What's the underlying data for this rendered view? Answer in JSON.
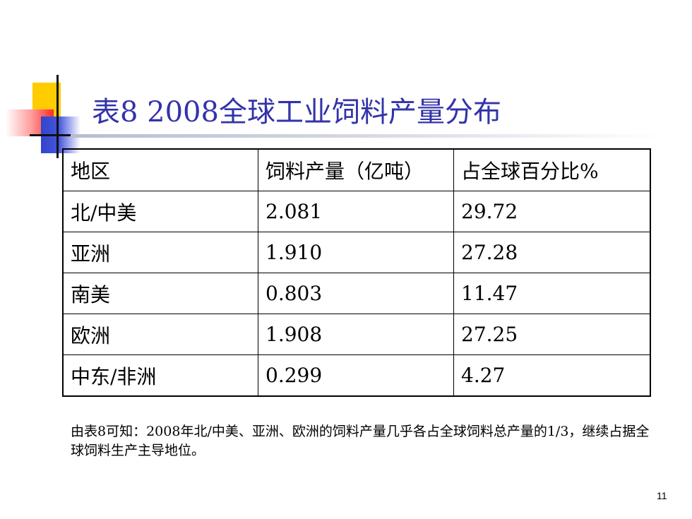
{
  "slide": {
    "title": "表8  2008全球工业饲料产量分布",
    "table": {
      "headers": [
        "地区",
        "饲料产量（亿吨）",
        "占全球百分比%"
      ],
      "rows": [
        [
          "北/中美",
          "2.081",
          "29.72"
        ],
        [
          "亚洲",
          "1.910",
          "27.28"
        ],
        [
          "南美",
          "0.803",
          "11.47"
        ],
        [
          "欧洲",
          "1.908",
          "27.25"
        ],
        [
          "中东/非洲",
          "0.299",
          "4.27"
        ]
      ]
    },
    "note": "由表8可知：2008年北/中美、亚洲、欧洲的饲料产量几乎各占全球饲料总产量的1/3，继续占据全球饲料生产主导地位。",
    "page_number": "11"
  },
  "colors": {
    "title": "#3333aa",
    "deco_yellow": "#ffcc00",
    "deco_red": "#ff2a2a",
    "deco_blue": "#3344cc"
  }
}
